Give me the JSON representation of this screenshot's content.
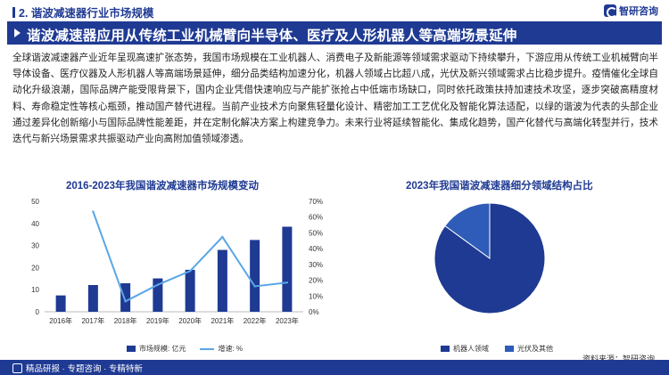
{
  "header": {
    "section_title": "2. 谐波减速器行业市场规模",
    "logo_text": "智研咨询"
  },
  "banner": {
    "title": "谐波减速器应用从传统工业机械臂向半导体、医疗及人形机器人等高端场景延伸"
  },
  "paragraph": "全球谐波减速器产业近年呈现高速扩张态势，我国市场规模在工业机器人、消费电子及新能源等领域需求驱动下持续攀升，下游应用从传统工业机械臂向半导体设备、医疗仪器及人形机器人等高端场景延伸，细分品类结构加速分化，机器人领域占比超八成，光伏及新兴领域需求占比稳步提升。疫情催化全球自动化升级浪潮，国际品牌产能受限背景下，国内企业凭借快速响应与产能扩张抢占中低端市场缺口，同时依托政策扶持加速技术攻坚，逐步突破高精度材料、寿命稳定性等核心瓶颈，推动国产替代进程。当前产业技术方向聚焦轻量化设计、精密加工工艺优化及智能化算法适配，以绿的谐波为代表的头部企业通过差异化创新缩小与国际品牌性能差距，并在定制化解决方案上构建竞争力。未来行业将延续智能化、集成化趋势，国产化替代与高端化转型并行，技术迭代与新兴场景需求共振驱动产业向高附加值领域渗透。",
  "chart_data": [
    {
      "type": "bar",
      "title": "2016-2023年我国谐波减速器市场规模变动",
      "categories": [
        "2016年",
        "2017年",
        "2018年",
        "2019年",
        "2020年",
        "2021年",
        "2022年",
        "2023年"
      ],
      "series": [
        {
          "name": "市场规模: 亿元",
          "type": "bar",
          "axis": "left",
          "values": [
            7.4,
            12.1,
            12.9,
            15.1,
            19.0,
            28.0,
            32.5,
            38.5
          ]
        },
        {
          "name": "增速: %",
          "type": "line",
          "axis": "right",
          "values": [
            null,
            63.5,
            6.6,
            17.1,
            25.8,
            47.4,
            16.1,
            18.5
          ]
        }
      ],
      "left_axis": {
        "ylim": [
          0,
          50
        ],
        "ticks": [
          "0",
          "10",
          "20",
          "30",
          "40",
          "50"
        ]
      },
      "right_axis": {
        "ylim": [
          0,
          70
        ],
        "ticks": [
          "0%",
          "10%",
          "20%",
          "30%",
          "40%",
          "50%",
          "60%",
          "70%"
        ]
      },
      "grid": false,
      "legend": "bottom",
      "colors": {
        "bar": "#1f3a93",
        "line": "#5aa6e6"
      }
    },
    {
      "type": "pie",
      "title": "2023年我国谐波减速器细分领域结构占比",
      "labels": [
        "机器人领域",
        "光伏及其他"
      ],
      "values": [
        85,
        15
      ],
      "legend": "bottom",
      "colors": [
        "#1f3a93",
        "#2e5cb8"
      ]
    }
  ],
  "source": "资料来源：智研咨询",
  "footer": {
    "text": "精品研报 · 专题咨询 · 专精特新"
  }
}
